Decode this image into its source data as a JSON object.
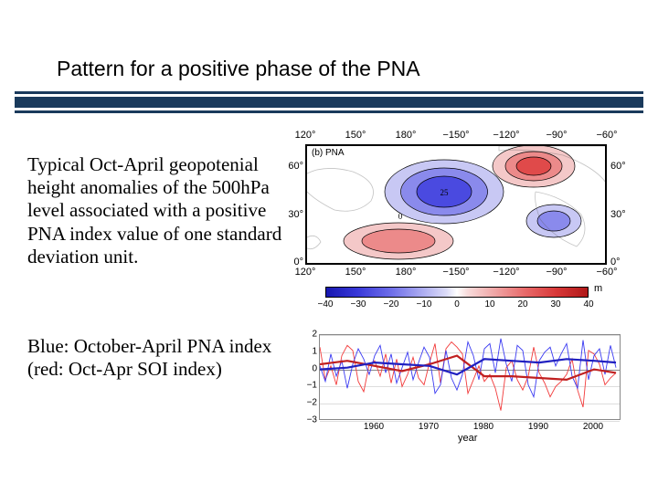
{
  "title": "Pattern for a positive phase of the PNA",
  "paragraph1": "Typical Oct-April geopotenial height anomalies of the 500hPa level associated with a positive PNA index value of one standard deviation unit.",
  "paragraph2_line1": "Blue: October-April PNA index",
  "paragraph2_line2": "(red: Oct-Apr SOI index)",
  "map": {
    "panel_label": "(b) PNA",
    "lon_ticks": [
      "120°",
      "150°",
      "180°",
      "−150°",
      "−120°",
      "−90°",
      "−60°"
    ],
    "lat_ticks": [
      "60°",
      "30°",
      "0°"
    ],
    "colorbar_ticks": [
      "−40",
      "−30",
      "−20",
      "−10",
      "0",
      "10",
      "20",
      "30",
      "40"
    ],
    "colorbar_unit": "m",
    "neg_center_value": "25",
    "zero_label": "0",
    "colors": {
      "neg_deep": "#4a4ae0",
      "neg_mid": "#8a8aec",
      "neg_light": "#c8c8f4",
      "pos_deep": "#e04a4a",
      "pos_mid": "#ec8a8a",
      "pos_light": "#f4c8c8"
    }
  },
  "timeseries": {
    "y_ticks": [
      "2",
      "1",
      "0",
      "−1",
      "−2",
      "−3"
    ],
    "x_ticks": [
      "1960",
      "1970",
      "1980",
      "1990",
      "2000"
    ],
    "x_label": "year",
    "x_range": [
      1950,
      2005
    ],
    "y_range": [
      -3,
      2
    ],
    "colors": {
      "pna": "#3a3af2",
      "soi": "#f23a3a",
      "pna_smooth": "#2020c0",
      "soi_smooth": "#c02020"
    },
    "pna_raw": [
      [
        1950,
        0.2
      ],
      [
        1951,
        -0.7
      ],
      [
        1952,
        0.9
      ],
      [
        1953,
        -0.4
      ],
      [
        1954,
        0.5
      ],
      [
        1955,
        -1.1
      ],
      [
        1956,
        0.3
      ],
      [
        1957,
        1.2
      ],
      [
        1958,
        0.6
      ],
      [
        1959,
        -0.3
      ],
      [
        1960,
        0.8
      ],
      [
        1961,
        1.4
      ],
      [
        1962,
        -0.2
      ],
      [
        1963,
        0.9
      ],
      [
        1964,
        -0.8
      ],
      [
        1965,
        0.1
      ],
      [
        1966,
        1.0
      ],
      [
        1967,
        -0.6
      ],
      [
        1968,
        0.4
      ],
      [
        1969,
        1.3
      ],
      [
        1970,
        0.7
      ],
      [
        1971,
        -1.4
      ],
      [
        1972,
        -0.9
      ],
      [
        1973,
        1.1
      ],
      [
        1974,
        -0.5
      ],
      [
        1975,
        -1.2
      ],
      [
        1976,
        -0.3
      ],
      [
        1977,
        1.6
      ],
      [
        1978,
        0.8
      ],
      [
        1979,
        -0.6
      ],
      [
        1980,
        1.2
      ],
      [
        1981,
        1.5
      ],
      [
        1982,
        -0.2
      ],
      [
        1983,
        1.8
      ],
      [
        1984,
        0.3
      ],
      [
        1985,
        -0.7
      ],
      [
        1986,
        1.4
      ],
      [
        1987,
        1.1
      ],
      [
        1988,
        -0.9
      ],
      [
        1989,
        -1.6
      ],
      [
        1990,
        0.5
      ],
      [
        1991,
        1.0
      ],
      [
        1992,
        1.3
      ],
      [
        1993,
        0.2
      ],
      [
        1994,
        0.9
      ],
      [
        1995,
        1.5
      ],
      [
        1996,
        -0.4
      ],
      [
        1997,
        -1.1
      ],
      [
        1998,
        1.7
      ],
      [
        1999,
        -0.6
      ],
      [
        2000,
        0.8
      ],
      [
        2001,
        1.2
      ],
      [
        2002,
        -0.3
      ],
      [
        2003,
        1.4
      ],
      [
        2004,
        0.1
      ]
    ],
    "soi_raw": [
      [
        1950,
        1.3
      ],
      [
        1951,
        -0.6
      ],
      [
        1952,
        0.2
      ],
      [
        1953,
        -0.9
      ],
      [
        1954,
        0.8
      ],
      [
        1955,
        1.4
      ],
      [
        1956,
        1.1
      ],
      [
        1957,
        -0.7
      ],
      [
        1958,
        -1.3
      ],
      [
        1959,
        0.3
      ],
      [
        1960,
        0.5
      ],
      [
        1961,
        -0.4
      ],
      [
        1962,
        0.9
      ],
      [
        1963,
        -0.8
      ],
      [
        1964,
        0.6
      ],
      [
        1965,
        -1.0
      ],
      [
        1966,
        -0.3
      ],
      [
        1967,
        0.7
      ],
      [
        1968,
        -0.5
      ],
      [
        1969,
        -0.9
      ],
      [
        1970,
        0.4
      ],
      [
        1971,
        1.5
      ],
      [
        1972,
        -0.8
      ],
      [
        1973,
        1.2
      ],
      [
        1974,
        1.6
      ],
      [
        1975,
        1.3
      ],
      [
        1976,
        0.9
      ],
      [
        1977,
        -1.4
      ],
      [
        1978,
        -0.6
      ],
      [
        1979,
        0.2
      ],
      [
        1980,
        -0.7
      ],
      [
        1981,
        -0.3
      ],
      [
        1982,
        -1.1
      ],
      [
        1983,
        -2.4
      ],
      [
        1984,
        0.1
      ],
      [
        1985,
        0.5
      ],
      [
        1986,
        -0.6
      ],
      [
        1987,
        -1.2
      ],
      [
        1988,
        -0.4
      ],
      [
        1989,
        1.3
      ],
      [
        1990,
        -0.2
      ],
      [
        1991,
        -0.8
      ],
      [
        1992,
        -1.6
      ],
      [
        1993,
        -1.0
      ],
      [
        1994,
        -0.7
      ],
      [
        1995,
        -0.3
      ],
      [
        1996,
        0.6
      ],
      [
        1997,
        -1.2
      ],
      [
        1998,
        -2.2
      ],
      [
        1999,
        1.1
      ],
      [
        2000,
        0.9
      ],
      [
        2001,
        0.3
      ],
      [
        2002,
        -0.9
      ],
      [
        2003,
        -0.5
      ],
      [
        2004,
        -0.2
      ]
    ],
    "pna_smooth": [
      [
        1950,
        0.0
      ],
      [
        1955,
        0.1
      ],
      [
        1960,
        0.4
      ],
      [
        1965,
        0.3
      ],
      [
        1970,
        0.2
      ],
      [
        1975,
        -0.3
      ],
      [
        1980,
        0.6
      ],
      [
        1985,
        0.5
      ],
      [
        1990,
        0.4
      ],
      [
        1995,
        0.6
      ],
      [
        2000,
        0.5
      ],
      [
        2004,
        0.4
      ]
    ],
    "soi_smooth": [
      [
        1950,
        0.3
      ],
      [
        1955,
        0.5
      ],
      [
        1960,
        0.2
      ],
      [
        1965,
        -0.1
      ],
      [
        1970,
        0.3
      ],
      [
        1975,
        0.8
      ],
      [
        1980,
        -0.4
      ],
      [
        1985,
        -0.4
      ],
      [
        1990,
        -0.5
      ],
      [
        1995,
        -0.6
      ],
      [
        2000,
        0.0
      ],
      [
        2004,
        -0.2
      ]
    ]
  }
}
